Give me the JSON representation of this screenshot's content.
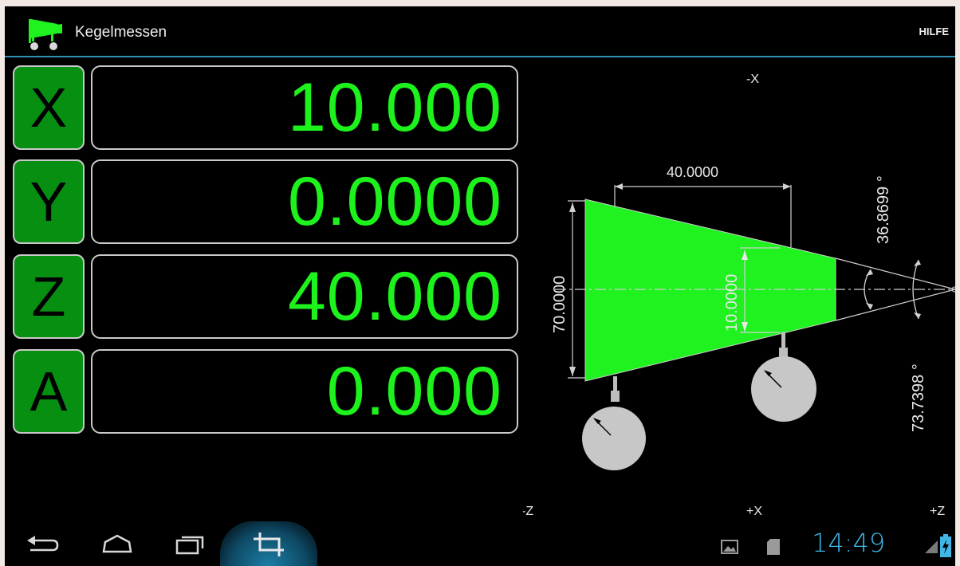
{
  "app": {
    "title": "Kegelmessen",
    "help_label": "HILFE"
  },
  "axes": [
    {
      "label": "X",
      "value": "10.000"
    },
    {
      "label": "Y",
      "value": "0.0000"
    },
    {
      "label": "Z",
      "value": "40.000"
    },
    {
      "label": "A",
      "value": "0.000"
    }
  ],
  "drawing": {
    "label_minus_x": "-X",
    "label_plus_x": "+X",
    "label_minus_z": "-Z",
    "label_plus_z": "+Z",
    "length_dim": "40.0000",
    "large_diameter": "70.0000",
    "small_diameter": "10.0000",
    "angle_half": "36.8699 °",
    "angle_full": "73.7398 °",
    "fill_color": "#1ff21f"
  },
  "statusbar": {
    "time": "14:49"
  },
  "colors": {
    "accent": "#2f8fb3",
    "value_green": "#1df21d",
    "button_green": "#078f12"
  }
}
